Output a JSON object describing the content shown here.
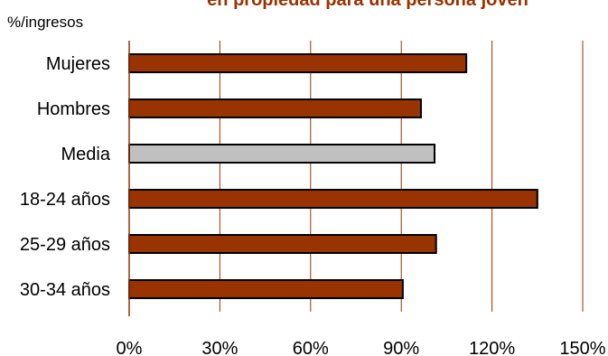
{
  "chart_data": {
    "type": "bar",
    "orientation": "horizontal",
    "title": "en propiedad para una persona joven",
    "unit_label": "%/ingresos",
    "categories": [
      "Mujeres",
      "Hombres",
      "Media",
      "18-24 años",
      "25-29 años",
      "30-34 años"
    ],
    "values": [
      111.5,
      96.5,
      101,
      135,
      101.5,
      90.5
    ],
    "highlight_category": "Media",
    "xlim": [
      0,
      150
    ],
    "xticks": [
      0,
      30,
      60,
      90,
      120,
      150
    ],
    "xtick_labels": [
      "0%",
      "30%",
      "60%",
      "90%",
      "120%",
      "150%"
    ],
    "grid": "vertical",
    "legend": "none",
    "colors": {
      "bar": "#993300",
      "highlight": "#c0c0c0",
      "grid": "#993300",
      "axis": "#993300",
      "title": "#993300"
    }
  }
}
